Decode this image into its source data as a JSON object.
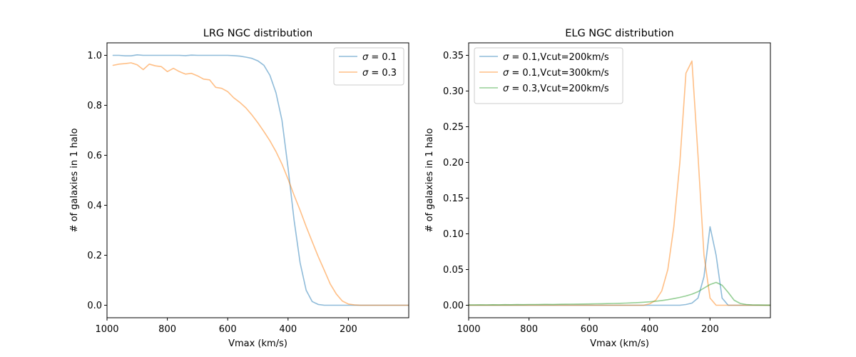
{
  "chart_data": [
    {
      "type": "line",
      "title": "LRG NGC distribution",
      "xlabel": "Vmax (km/s)",
      "ylabel": "# of galaxies in 1 halo",
      "xlim": [
        1000,
        0
      ],
      "ylim": [
        -0.05,
        1.05
      ],
      "x_ticks": [
        1000,
        800,
        600,
        400,
        200
      ],
      "y_ticks": [
        0.0,
        0.2,
        0.4,
        0.6,
        0.8,
        1.0
      ],
      "y_tick_labels": [
        "0.0",
        "0.2",
        "0.4",
        "0.6",
        "0.8",
        "1.0"
      ],
      "grid": false,
      "legend_position": "top-right",
      "x": [
        980,
        960,
        940,
        920,
        900,
        880,
        860,
        840,
        820,
        800,
        780,
        760,
        740,
        720,
        700,
        680,
        660,
        640,
        620,
        600,
        580,
        560,
        540,
        520,
        500,
        480,
        460,
        440,
        420,
        400,
        380,
        360,
        340,
        320,
        300,
        280,
        260,
        240,
        220,
        200,
        180,
        160,
        140,
        120,
        100,
        80,
        60,
        40,
        20,
        0
      ],
      "series": [
        {
          "name": "σ = 0.1",
          "color": "#1f77b4",
          "values": [
            1.0,
            1.0,
            0.998,
            0.998,
            1.002,
            1.0,
            1.0,
            1.0,
            1.0,
            1.0,
            1.0,
            1.0,
            0.999,
            1.001,
            1.0,
            1.0,
            1.0,
            1.0,
            1.0,
            1.0,
            0.999,
            0.997,
            0.993,
            0.988,
            0.978,
            0.96,
            0.92,
            0.85,
            0.74,
            0.55,
            0.34,
            0.17,
            0.06,
            0.015,
            0.003,
            0.0,
            0.0,
            0.0,
            0.0,
            0.0,
            0.0,
            0.0,
            0.0,
            0.0,
            0.0,
            0.0,
            0.0,
            0.0,
            0.0,
            0.0
          ]
        },
        {
          "name": "σ = 0.3",
          "color": "#ff7f0e",
          "values": [
            0.96,
            0.965,
            0.967,
            0.97,
            0.962,
            0.943,
            0.965,
            0.958,
            0.955,
            0.935,
            0.948,
            0.935,
            0.925,
            0.928,
            0.918,
            0.905,
            0.902,
            0.872,
            0.868,
            0.855,
            0.83,
            0.812,
            0.79,
            0.762,
            0.73,
            0.695,
            0.658,
            0.615,
            0.565,
            0.505,
            0.44,
            0.38,
            0.315,
            0.255,
            0.195,
            0.14,
            0.085,
            0.045,
            0.017,
            0.005,
            0.001,
            0.0,
            0.0,
            0.0,
            0.0,
            0.0,
            0.0,
            0.0,
            0.0,
            0.0
          ]
        }
      ]
    },
    {
      "type": "line",
      "title": "ELG NGC distribution",
      "xlabel": "Vmax (km/s)",
      "ylabel": "# of galaxies in 1 halo",
      "xlim": [
        1000,
        0
      ],
      "ylim": [
        -0.0175,
        0.3675
      ],
      "x_ticks": [
        1000,
        800,
        600,
        400,
        200
      ],
      "y_ticks": [
        0.0,
        0.05,
        0.1,
        0.15,
        0.2,
        0.25,
        0.3,
        0.35
      ],
      "y_tick_labels": [
        "0.00",
        "0.05",
        "0.10",
        "0.15",
        "0.20",
        "0.25",
        "0.30",
        "0.35"
      ],
      "grid": false,
      "legend_position": "top-left",
      "x": [
        1000,
        980,
        960,
        940,
        920,
        900,
        880,
        860,
        840,
        820,
        800,
        780,
        760,
        740,
        720,
        700,
        680,
        660,
        640,
        620,
        600,
        580,
        560,
        540,
        520,
        500,
        480,
        460,
        440,
        420,
        400,
        380,
        360,
        340,
        320,
        300,
        280,
        260,
        240,
        220,
        200,
        180,
        160,
        140,
        120,
        100,
        80,
        60,
        40,
        20,
        0
      ],
      "series": [
        {
          "name": "σ = 0.1,Vcut=200km/s",
          "color": "#1f77b4",
          "values": [
            0.0,
            0.0,
            0.0,
            0.0,
            0.0,
            0.0,
            0.0,
            0.0,
            0.0,
            0.0,
            0.0,
            0.0,
            0.0,
            0.0,
            0.0,
            0.0,
            0.0,
            0.0,
            0.0,
            0.0,
            0.0,
            0.0,
            0.0,
            0.0,
            0.0,
            0.0,
            0.0,
            0.0,
            0.0,
            0.0,
            0.0,
            0.0,
            0.0,
            0.0,
            0.0,
            0.0,
            0.001,
            0.003,
            0.01,
            0.04,
            0.11,
            0.07,
            0.01,
            0.0,
            0.0,
            0.0,
            0.0,
            0.0,
            0.0,
            0.0,
            0.0
          ]
        },
        {
          "name": "σ = 0.1,Vcut=300km/s",
          "color": "#ff7f0e",
          "values": [
            0.0,
            0.0,
            0.0,
            0.0,
            0.0,
            0.0,
            0.0,
            0.0,
            0.0,
            0.0,
            0.0,
            0.0,
            0.0,
            0.0,
            0.0,
            0.0,
            0.0,
            0.0,
            0.0,
            0.0,
            0.0,
            0.0,
            0.0,
            0.0,
            0.0,
            0.0,
            0.0,
            0.0,
            0.0,
            0.0,
            0.002,
            0.007,
            0.02,
            0.05,
            0.11,
            0.2,
            0.325,
            0.342,
            0.21,
            0.07,
            0.01,
            0.0,
            0.0,
            0.0,
            0.0,
            0.0,
            0.0,
            0.0,
            0.0,
            0.0,
            0.0
          ]
        },
        {
          "name": "σ = 0.3,Vcut=200km/s",
          "color": "#2ca02c",
          "values": [
            0.0005,
            0.0005,
            0.0006,
            0.0005,
            0.0007,
            0.0006,
            0.0008,
            0.0007,
            0.0009,
            0.0008,
            0.001,
            0.001,
            0.0011,
            0.0012,
            0.0011,
            0.0013,
            0.0014,
            0.0015,
            0.0016,
            0.0017,
            0.0018,
            0.002,
            0.0021,
            0.0023,
            0.0025,
            0.0027,
            0.003,
            0.0033,
            0.0037,
            0.0042,
            0.0048,
            0.0056,
            0.0066,
            0.0078,
            0.0093,
            0.011,
            0.013,
            0.0155,
            0.019,
            0.024,
            0.029,
            0.032,
            0.028,
            0.018,
            0.007,
            0.0025,
            0.001,
            0.0005,
            0.0003,
            0.0002,
            0.0001
          ]
        }
      ]
    }
  ]
}
